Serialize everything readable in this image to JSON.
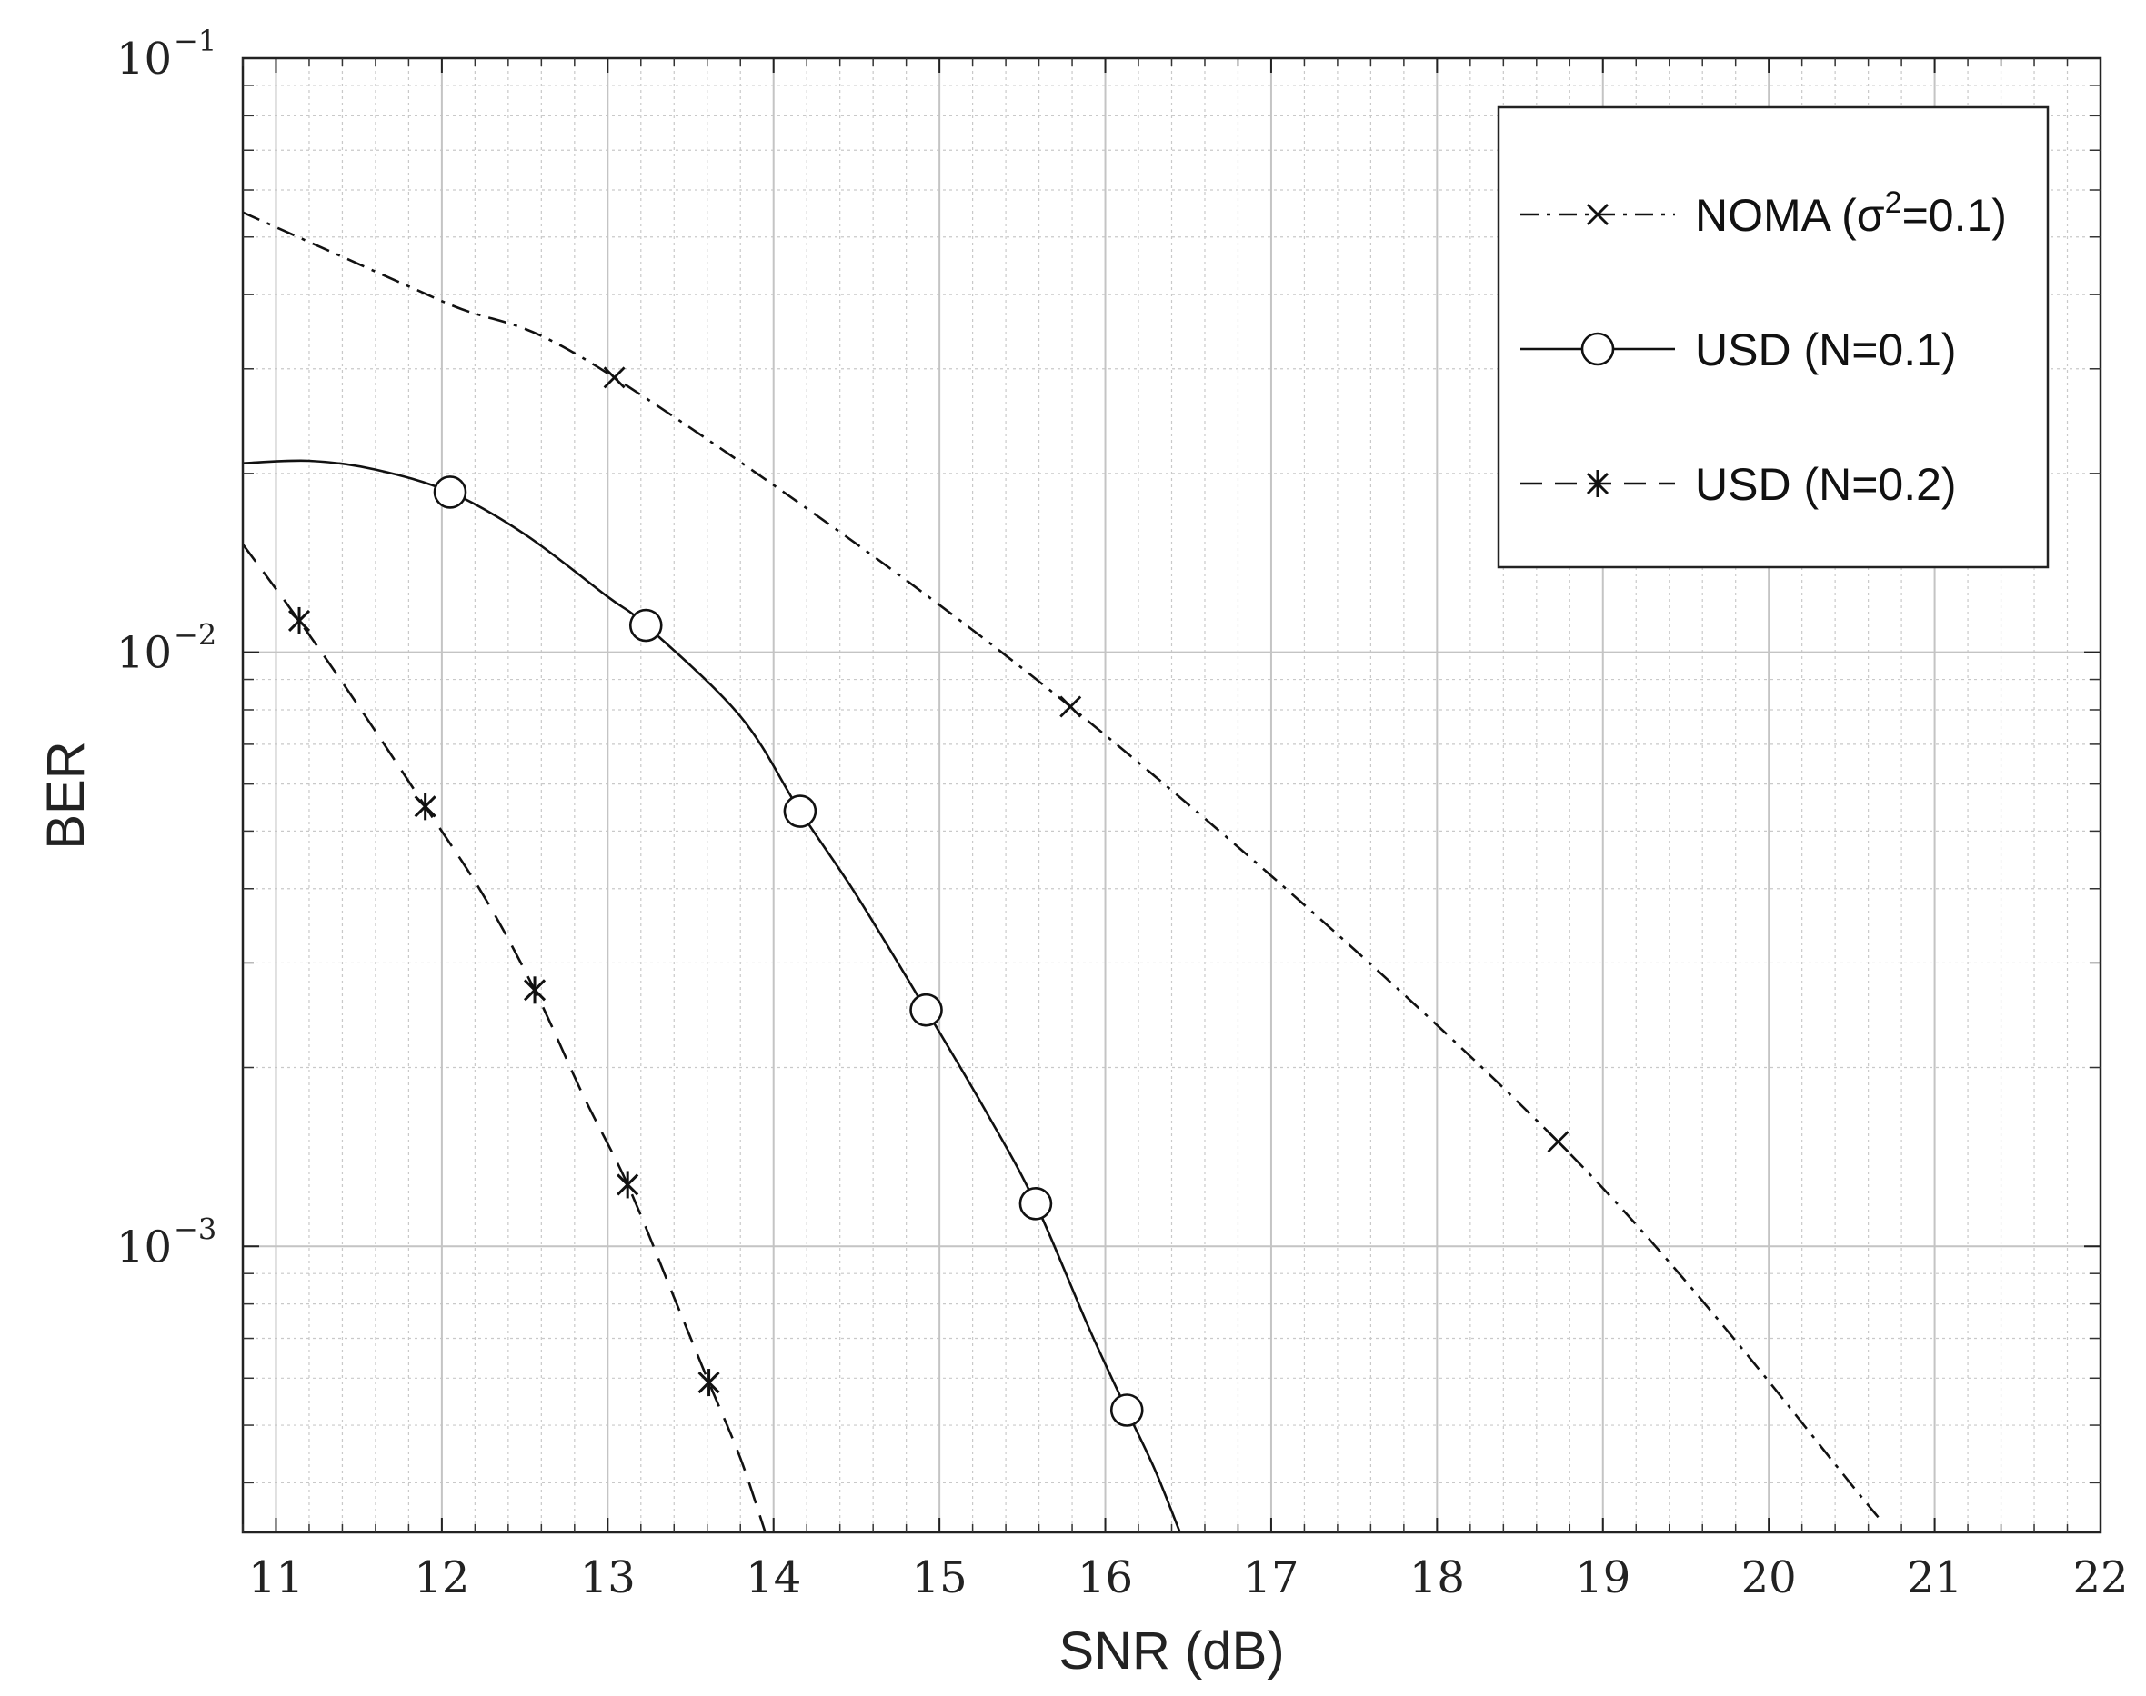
{
  "chart_data": {
    "type": "line",
    "xlabel": "SNR (dB)",
    "ylabel": "BER",
    "xlim": [
      10.8,
      22
    ],
    "ylim": [
      0.00033,
      0.1
    ],
    "yscale": "log",
    "grid": "major and minor",
    "x_ticks": [
      "11",
      "12",
      "13",
      "14",
      "15",
      "16",
      "17",
      "18",
      "19",
      "20",
      "21",
      "22"
    ],
    "y_ticks": [
      {
        "base": "10",
        "exp": "−1",
        "value": 0.1
      },
      {
        "base": "10",
        "exp": "−2",
        "value": 0.01
      },
      {
        "base": "10",
        "exp": "−3",
        "value": 0.001
      }
    ],
    "legend": {
      "placement": "top-right",
      "entries": [
        {
          "prefix": "NOMA (σ",
          "sup": "2",
          "suffix": "=0.1)",
          "marker": "x",
          "line": "dash-dot"
        },
        {
          "prefix": "USD (N=0.1)",
          "sup": "",
          "suffix": "",
          "marker": "circle",
          "line": "solid"
        },
        {
          "prefix": "USD (N=0.2)",
          "sup": "",
          "suffix": "",
          "marker": "asterisk",
          "line": "dashed"
        }
      ]
    },
    "series": [
      {
        "name": "NOMA (σ2=0.1)",
        "line": "dash-dot",
        "marker": "x",
        "curve_x": [
          10.8,
          12.0,
          13.04,
          15.79,
          18.73,
          20.66
        ],
        "curve_y": [
          0.055,
          0.039,
          0.029,
          0.0081,
          0.0015,
          0.00035
        ],
        "markers_x": [
          13.04,
          15.79,
          18.73
        ],
        "markers_y": [
          0.029,
          0.0081,
          0.0015
        ]
      },
      {
        "name": "USD (N=0.1)",
        "line": "solid",
        "marker": "circle",
        "curve_x": [
          10.8,
          11.2,
          11.6,
          12.05,
          12.5,
          13.0,
          13.23,
          13.8,
          14.16,
          14.5,
          14.92,
          15.3,
          15.58,
          15.9,
          16.13,
          16.3,
          16.45
        ],
        "curve_y": [
          0.0208,
          0.021,
          0.0203,
          0.0186,
          0.0158,
          0.0124,
          0.0111,
          0.0078,
          0.0054,
          0.0039,
          0.0025,
          0.00165,
          0.00118,
          0.00073,
          0.00053,
          0.00042,
          0.00033
        ],
        "markers_x": [
          12.05,
          13.23,
          14.16,
          14.92,
          15.58,
          16.13
        ],
        "markers_y": [
          0.0186,
          0.0111,
          0.0054,
          0.0025,
          0.00118,
          0.00053
        ]
      },
      {
        "name": "USD (N=0.2)",
        "line": "dashed",
        "marker": "asterisk",
        "curve_x": [
          10.8,
          11.14,
          11.5,
          11.9,
          12.25,
          12.56,
          12.85,
          13.12,
          13.4,
          13.61,
          13.8,
          13.95
        ],
        "curve_y": [
          0.0152,
          0.0113,
          0.0081,
          0.0055,
          0.0039,
          0.0027,
          0.0018,
          0.00127,
          0.00082,
          0.00059,
          0.00044,
          0.00033
        ],
        "markers_x": [
          11.14,
          11.9,
          12.56,
          13.12,
          13.61
        ],
        "markers_y": [
          0.0113,
          0.0055,
          0.0027,
          0.00127,
          0.00059
        ]
      }
    ]
  }
}
